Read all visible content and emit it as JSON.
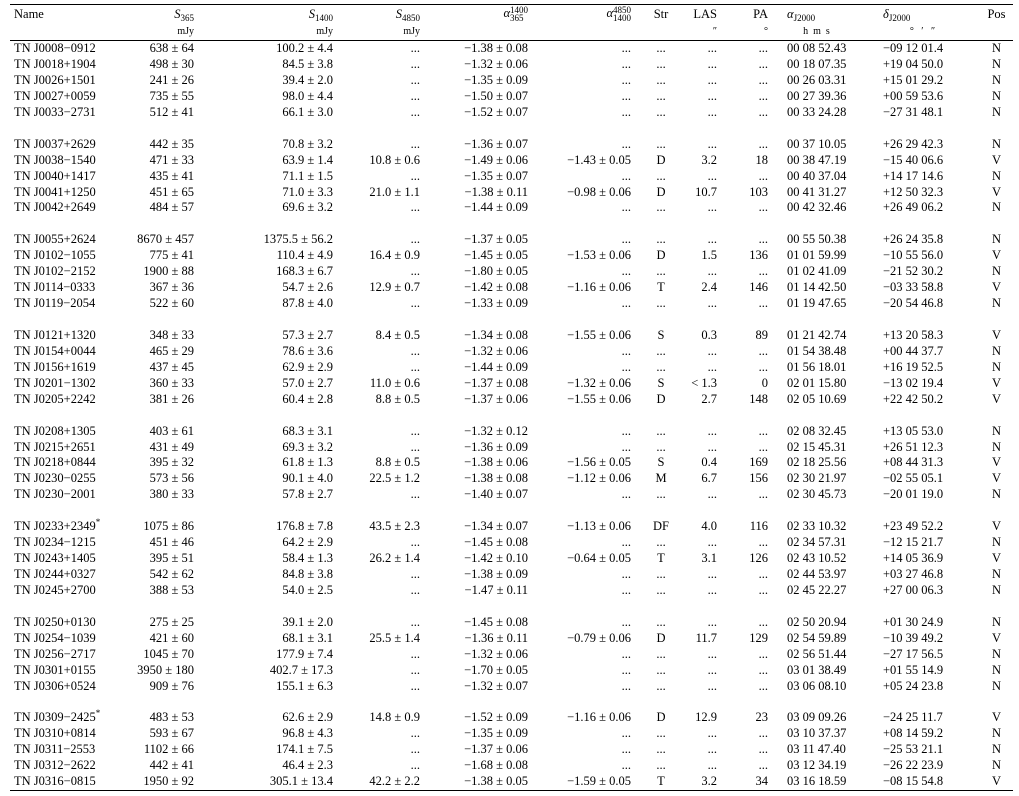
{
  "columns": [
    {
      "label": "Name"
    },
    {
      "symbol": "S",
      "sub": "365",
      "unit": "mJy"
    },
    {
      "symbol": "S",
      "sub": "1400",
      "unit": "mJy"
    },
    {
      "symbol": "S",
      "sub": "4850",
      "unit": "mJy"
    },
    {
      "symbol": "α",
      "sup": "1400",
      "sub": "365"
    },
    {
      "symbol": "α",
      "sup": "4850",
      "sub": "1400"
    },
    {
      "label": "Str"
    },
    {
      "label": "LAS",
      "unit": "″"
    },
    {
      "label": "PA",
      "unit": "°"
    },
    {
      "symbol": "α",
      "sub": "J2000",
      "unit": "h  m  s"
    },
    {
      "symbol": "δ",
      "sub": "J2000",
      "unit": "°   ′   ″"
    },
    {
      "label": "Pos"
    }
  ],
  "groups": [
    [
      [
        "TN J0008−0912",
        "638 ± 64",
        "100.2 ± 4.4",
        "...",
        "−1.38 ± 0.08",
        "...",
        "...",
        "...",
        "...",
        "00 08 52.43",
        "−09 12 01.4",
        "N"
      ],
      [
        "TN J0018+1904",
        "498 ± 30",
        "84.5 ± 3.8",
        "...",
        "−1.32 ± 0.06",
        "...",
        "...",
        "...",
        "...",
        "00 18 07.35",
        "+19 04 50.0",
        "N"
      ],
      [
        "TN J0026+1501",
        "241 ± 26",
        "39.4 ± 2.0",
        "...",
        "−1.35 ± 0.09",
        "...",
        "...",
        "...",
        "...",
        "00 26 03.31",
        "+15 01 29.2",
        "N"
      ],
      [
        "TN J0027+0059",
        "735 ± 55",
        "98.0 ± 4.4",
        "...",
        "−1.50 ± 0.07",
        "...",
        "...",
        "...",
        "...",
        "00 27 39.36",
        "+00 59 53.6",
        "N"
      ],
      [
        "TN J0033−2731",
        "512 ± 41",
        "66.1 ± 3.0",
        "...",
        "−1.52 ± 0.07",
        "...",
        "...",
        "...",
        "...",
        "00 33 24.28",
        "−27 31 48.1",
        "N"
      ]
    ],
    [
      [
        "TN J0037+2629",
        "442 ± 35",
        "70.8 ± 3.2",
        "...",
        "−1.36 ± 0.07",
        "...",
        "...",
        "...",
        "...",
        "00 37 10.05",
        "+26 29 42.3",
        "N"
      ],
      [
        "TN J0038−1540",
        "471 ± 33",
        "63.9 ± 1.4",
        "10.8 ± 0.6",
        "−1.49 ± 0.06",
        "−1.43 ± 0.05",
        "D",
        "3.2",
        "18",
        "00 38 47.19",
        "−15 40 06.6",
        "V"
      ],
      [
        "TN J0040+1417",
        "435 ± 41",
        "71.1 ± 1.5",
        "...",
        "−1.35 ± 0.07",
        "...",
        "...",
        "...",
        "...",
        "00 40 37.04",
        "+14 17 14.6",
        "N"
      ],
      [
        "TN J0041+1250",
        "451 ± 65",
        "71.0 ± 3.3",
        "21.0 ± 1.1",
        "−1.38 ± 0.11",
        "−0.98 ± 0.06",
        "D",
        "10.7",
        "103",
        "00 41 31.27",
        "+12 50 32.3",
        "V"
      ],
      [
        "TN J0042+2649",
        "484 ± 57",
        "69.6 ± 3.2",
        "...",
        "−1.44 ± 0.09",
        "...",
        "...",
        "...",
        "...",
        "00 42 32.46",
        "+26 49 06.2",
        "N"
      ]
    ],
    [
      [
        "TN J0055+2624",
        "8670 ± 457",
        "1375.5 ± 56.2",
        "...",
        "−1.37 ± 0.05",
        "...",
        "...",
        "...",
        "...",
        "00 55 50.38",
        "+26 24 35.8",
        "N"
      ],
      [
        "TN J0102−1055",
        "775 ± 41",
        "110.4 ± 4.9",
        "16.4 ± 0.9",
        "−1.45 ± 0.05",
        "−1.53 ± 0.06",
        "D",
        "1.5",
        "136",
        "01 01 59.99",
        "−10 55 56.0",
        "V"
      ],
      [
        "TN J0102−2152",
        "1900 ± 88",
        "168.3 ± 6.7",
        "...",
        "−1.80 ± 0.05",
        "...",
        "...",
        "...",
        "...",
        "01 02 41.09",
        "−21 52 30.2",
        "N"
      ],
      [
        "TN J0114−0333",
        "367 ± 36",
        "54.7 ± 2.6",
        "12.9 ± 0.7",
        "−1.42 ± 0.08",
        "−1.16 ± 0.06",
        "T",
        "2.4",
        "146",
        "01 14 42.50",
        "−03 33 58.8",
        "V"
      ],
      [
        "TN J0119−2054",
        "522 ± 60",
        "87.8 ± 4.0",
        "...",
        "−1.33 ± 0.09",
        "...",
        "...",
        "...",
        "...",
        "01 19 47.65",
        "−20 54 46.8",
        "N"
      ]
    ],
    [
      [
        "TN J0121+1320",
        "348 ± 33",
        "57.3 ± 2.7",
        "8.4 ± 0.5",
        "−1.34 ± 0.08",
        "−1.55 ± 0.06",
        "S",
        "0.3",
        "89",
        "01 21 42.74",
        "+13 20 58.3",
        "V"
      ],
      [
        "TN J0154+0044",
        "465 ± 29",
        "78.6 ± 3.6",
        "...",
        "−1.32 ± 0.06",
        "...",
        "...",
        "...",
        "...",
        "01 54 38.48",
        "+00 44 37.7",
        "N"
      ],
      [
        "TN J0156+1619",
        "437 ± 45",
        "62.9 ± 2.9",
        "...",
        "−1.44 ± 0.09",
        "...",
        "...",
        "...",
        "...",
        "01 56 18.01",
        "+16 19 52.5",
        "N"
      ],
      [
        "TN J0201−1302",
        "360 ± 33",
        "57.0 ± 2.7",
        "11.0 ± 0.6",
        "−1.37 ± 0.08",
        "−1.32 ± 0.06",
        "S",
        "< 1.3",
        "0",
        "02 01 15.80",
        "−13 02 19.4",
        "V"
      ],
      [
        "TN J0205+2242",
        "381 ± 26",
        "60.4 ± 2.8",
        "8.8 ± 0.5",
        "−1.37 ± 0.06",
        "−1.55 ± 0.06",
        "D",
        "2.7",
        "148",
        "02 05 10.69",
        "+22 42 50.2",
        "V"
      ]
    ],
    [
      [
        "TN J0208+1305",
        "403 ± 61",
        "68.3 ± 3.1",
        "...",
        "−1.32 ± 0.12",
        "...",
        "...",
        "...",
        "...",
        "02 08 32.45",
        "+13 05 53.0",
        "N"
      ],
      [
        "TN J0215+2651",
        "431 ± 49",
        "69.3 ± 3.2",
        "...",
        "−1.36 ± 0.09",
        "...",
        "...",
        "...",
        "...",
        "02 15 45.31",
        "+26 51 12.3",
        "N"
      ],
      [
        "TN J0218+0844",
        "395 ± 32",
        "61.8 ± 1.3",
        "8.8 ± 0.5",
        "−1.38 ± 0.06",
        "−1.56 ± 0.05",
        "S",
        "0.4",
        "169",
        "02 18 25.56",
        "+08 44 31.3",
        "V"
      ],
      [
        "TN J0230−0255",
        "573 ± 56",
        "90.1 ± 4.0",
        "22.5 ± 1.2",
        "−1.38 ± 0.08",
        "−1.12 ± 0.06",
        "M",
        "6.7",
        "156",
        "02 30 21.97",
        "−02 55 05.1",
        "V"
      ],
      [
        "TN J0230−2001",
        "380 ± 33",
        "57.8 ± 2.7",
        "...",
        "−1.40 ± 0.07",
        "...",
        "...",
        "...",
        "...",
        "02 30 45.73",
        "−20 01 19.0",
        "N"
      ]
    ],
    [
      [
        "TN J0233+2349*",
        "1075 ± 86",
        "176.8 ± 7.8",
        "43.5 ± 2.3",
        "−1.34 ± 0.07",
        "−1.13 ± 0.06",
        "DF",
        "4.0",
        "116",
        "02 33 10.32",
        "+23 49 52.2",
        "V"
      ],
      [
        "TN J0234−1215",
        "451 ± 46",
        "64.2 ± 2.9",
        "...",
        "−1.45 ± 0.08",
        "...",
        "...",
        "...",
        "...",
        "02 34 57.31",
        "−12 15 21.7",
        "N"
      ],
      [
        "TN J0243+1405",
        "395 ± 51",
        "58.4 ± 1.3",
        "26.2 ± 1.4",
        "−1.42 ± 0.10",
        "−0.64 ± 0.05",
        "T",
        "3.1",
        "126",
        "02 43 10.52",
        "+14 05 36.9",
        "V"
      ],
      [
        "TN J0244+0327",
        "542 ± 62",
        "84.8 ± 3.8",
        "...",
        "−1.38 ± 0.09",
        "...",
        "...",
        "...",
        "...",
        "02 44 53.97",
        "+03 27 46.8",
        "N"
      ],
      [
        "TN J0245+2700",
        "388 ± 53",
        "54.0 ± 2.5",
        "...",
        "−1.47 ± 0.11",
        "...",
        "...",
        "...",
        "...",
        "02 45 22.27",
        "+27 00 06.3",
        "N"
      ]
    ],
    [
      [
        "TN J0250+0130",
        "275 ± 25",
        "39.1 ± 2.0",
        "...",
        "−1.45 ± 0.08",
        "...",
        "...",
        "...",
        "...",
        "02 50 20.94",
        "+01 30 24.9",
        "N"
      ],
      [
        "TN J0254−1039",
        "421 ± 60",
        "68.1 ± 3.1",
        "25.5 ± 1.4",
        "−1.36 ± 0.11",
        "−0.79 ± 0.06",
        "D",
        "11.7",
        "129",
        "02 54 59.89",
        "−10 39 49.2",
        "V"
      ],
      [
        "TN J0256−2717",
        "1045 ± 70",
        "177.9 ± 7.4",
        "...",
        "−1.32 ± 0.06",
        "...",
        "...",
        "...",
        "...",
        "02 56 51.44",
        "−27 17 56.5",
        "N"
      ],
      [
        "TN J0301+0155",
        "3950 ± 180",
        "402.7 ± 17.3",
        "...",
        "−1.70 ± 0.05",
        "...",
        "...",
        "...",
        "...",
        "03 01 38.49",
        "+01 55 14.9",
        "N"
      ],
      [
        "TN J0306+0524",
        "909 ± 76",
        "155.1 ± 6.3",
        "...",
        "−1.32 ± 0.07",
        "...",
        "...",
        "...",
        "...",
        "03 06 08.10",
        "+05 24 23.8",
        "N"
      ]
    ],
    [
      [
        "TN J0309−2425*",
        "483 ± 53",
        "62.6 ± 2.9",
        "14.8 ± 0.9",
        "−1.52 ± 0.09",
        "−1.16 ± 0.06",
        "D",
        "12.9",
        "23",
        "03 09 09.26",
        "−24 25 11.7",
        "V"
      ],
      [
        "TN J0310+0814",
        "593 ± 67",
        "96.8 ± 4.3",
        "...",
        "−1.35 ± 0.09",
        "...",
        "...",
        "...",
        "...",
        "03 10 37.37",
        "+08 14 59.2",
        "N"
      ],
      [
        "TN J0311−2553",
        "1102 ± 66",
        "174.1 ± 7.5",
        "...",
        "−1.37 ± 0.06",
        "...",
        "...",
        "...",
        "...",
        "03 11 47.40",
        "−25 53 21.1",
        "N"
      ],
      [
        "TN J0312−2622",
        "442 ± 41",
        "46.4 ± 2.3",
        "...",
        "−1.68 ± 0.08",
        "...",
        "...",
        "...",
        "...",
        "03 12 34.19",
        "−26 22 23.9",
        "N"
      ],
      [
        "TN J0316−0815",
        "1950 ± 92",
        "305.1 ± 13.4",
        "42.2 ± 2.2",
        "−1.38 ± 0.05",
        "−1.59 ± 0.05",
        "T",
        "3.2",
        "34",
        "03 16 18.59",
        "−08 15 54.8",
        "V"
      ]
    ]
  ]
}
